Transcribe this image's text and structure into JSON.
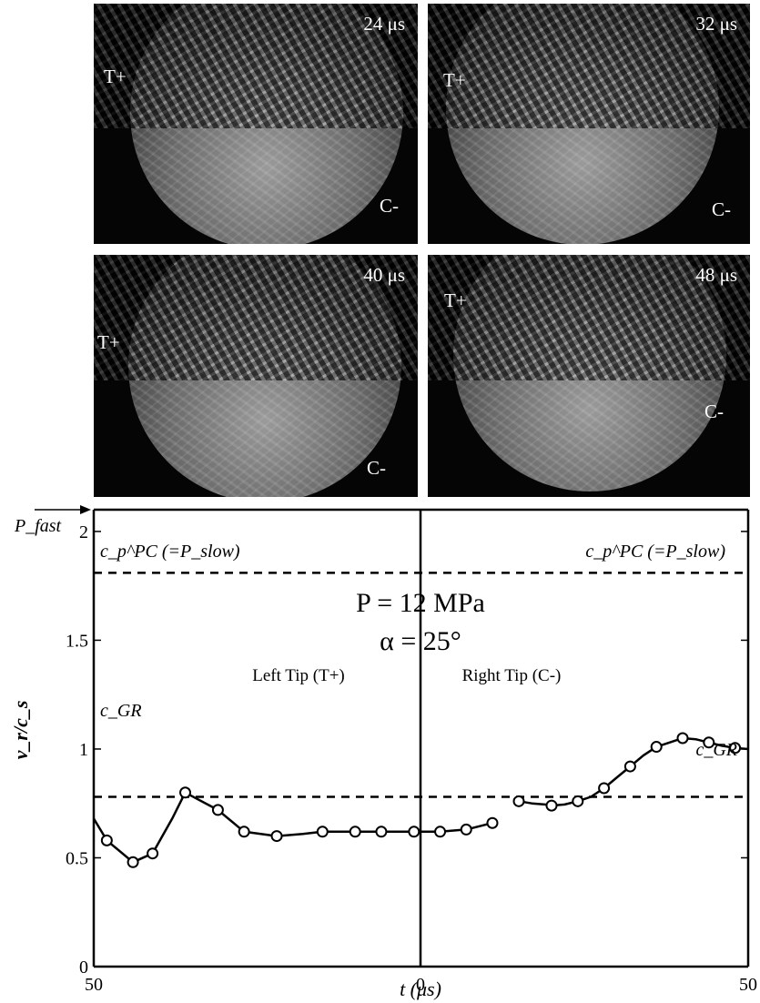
{
  "photos": [
    {
      "time": "24 μs",
      "left_label": "T+",
      "right_label": "C-"
    },
    {
      "time": "32 μs",
      "left_label": "T+",
      "right_label": "C-"
    },
    {
      "time": "40 μs",
      "left_label": "T+",
      "right_label": "C-"
    },
    {
      "time": "48 μs",
      "left_label": "T+",
      "right_label": "C-"
    }
  ],
  "chart_data": {
    "type": "line",
    "xlabel": "t (μs)",
    "ylabel": "v_r/c_s",
    "x_tick_labels": [
      "50",
      "0",
      "50"
    ],
    "y_ticks": [
      0,
      0.5,
      1,
      1.5,
      2
    ],
    "y_tick_labels": [
      "0",
      "0.5",
      "1",
      "1.5",
      "2"
    ],
    "ylim": [
      0,
      2.1
    ],
    "grid": false,
    "annotations": {
      "p_fast": "P_fast",
      "cp_left": "c_p^PC (=P_slow)",
      "cp_right": "c_p^PC (=P_slow)",
      "cgr_left": "c_GR",
      "cgr_right": "c_GR",
      "pressure": "P = 12 MPa",
      "alpha": "α = 25°",
      "left_tip": "Left Tip (T+)",
      "right_tip": "Right Tip (C-)"
    },
    "reference_lines": [
      {
        "name": "c_p^PC",
        "y": 1.81
      },
      {
        "name": "c_GR",
        "y": 0.78
      }
    ],
    "series": [
      {
        "name": "Left Tip (T+)",
        "x": [
          50,
          48,
          44,
          41,
          38,
          36,
          31,
          27,
          22,
          18,
          15,
          10,
          6,
          1,
          -3,
          -7,
          -11
        ],
        "y": [
          0.68,
          0.58,
          0.48,
          0.52,
          0.68,
          0.8,
          0.72,
          0.62,
          0.6,
          0.61,
          0.62,
          0.62,
          0.62,
          0.62,
          0.62,
          0.63,
          0.66
        ]
      },
      {
        "name": "Right Tip (C-)",
        "x": [
          15,
          17,
          19,
          20,
          22,
          24,
          26,
          28,
          30,
          32,
          34,
          36,
          38,
          40,
          42,
          44,
          46,
          48,
          50
        ],
        "y": [
          0.76,
          0.75,
          0.745,
          0.74,
          0.745,
          0.76,
          0.78,
          0.82,
          0.87,
          0.92,
          0.97,
          1.01,
          1.03,
          1.05,
          1.045,
          1.03,
          1.015,
          1.005,
          1.0
        ]
      }
    ],
    "markers": [
      {
        "series": 0,
        "x": [
          48,
          44,
          41,
          36,
          31,
          27,
          22,
          15,
          10,
          6,
          1,
          -3,
          -7,
          -11
        ]
      },
      {
        "series": 1,
        "x": [
          15,
          20,
          24,
          28,
          32,
          36,
          40,
          44,
          48
        ]
      }
    ]
  }
}
